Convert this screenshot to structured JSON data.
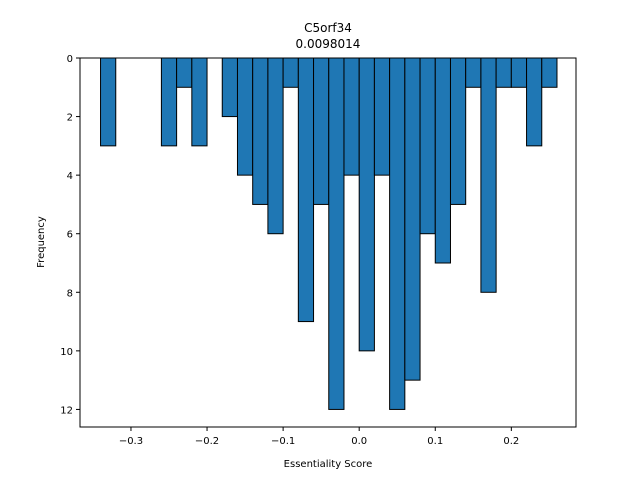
{
  "chart_data": {
    "type": "bar",
    "title": "C5orf34",
    "subtitle": "0.0098014",
    "xlabel": "Essentiality Score",
    "ylabel": "Frequency",
    "y_inverted": true,
    "xlim": [
      -0.367,
      0.285
    ],
    "ylim": [
      0,
      12.6
    ],
    "bar_width": 0.02,
    "bar_color": "#1f77b4",
    "edge_color": "#000000",
    "grid": false,
    "legend": "none",
    "xticks": [
      -0.3,
      -0.2,
      -0.1,
      0.0,
      0.1,
      0.2
    ],
    "xtick_labels": [
      "−0.3",
      "−0.2",
      "−0.1",
      "0.0",
      "0.1",
      "0.2"
    ],
    "yticks": [
      0,
      2,
      4,
      6,
      8,
      10,
      12
    ],
    "ytick_labels": [
      "0",
      "2",
      "4",
      "6",
      "8",
      "10",
      "12"
    ],
    "bins": [
      {
        "x": -0.33,
        "value": 3
      },
      {
        "x": -0.25,
        "value": 3
      },
      {
        "x": -0.23,
        "value": 1
      },
      {
        "x": -0.21,
        "value": 3
      },
      {
        "x": -0.17,
        "value": 2
      },
      {
        "x": -0.15,
        "value": 4
      },
      {
        "x": -0.13,
        "value": 5
      },
      {
        "x": -0.11,
        "value": 6
      },
      {
        "x": -0.09,
        "value": 1
      },
      {
        "x": -0.07,
        "value": 9
      },
      {
        "x": -0.05,
        "value": 5
      },
      {
        "x": -0.03,
        "value": 12
      },
      {
        "x": -0.01,
        "value": 4
      },
      {
        "x": 0.01,
        "value": 10
      },
      {
        "x": 0.03,
        "value": 4
      },
      {
        "x": 0.05,
        "value": 12
      },
      {
        "x": 0.07,
        "value": 11
      },
      {
        "x": 0.09,
        "value": 6
      },
      {
        "x": 0.11,
        "value": 7
      },
      {
        "x": 0.13,
        "value": 5
      },
      {
        "x": 0.15,
        "value": 1
      },
      {
        "x": 0.17,
        "value": 8
      },
      {
        "x": 0.19,
        "value": 1
      },
      {
        "x": 0.21,
        "value": 1
      },
      {
        "x": 0.23,
        "value": 3
      },
      {
        "x": 0.25,
        "value": 1
      }
    ]
  }
}
